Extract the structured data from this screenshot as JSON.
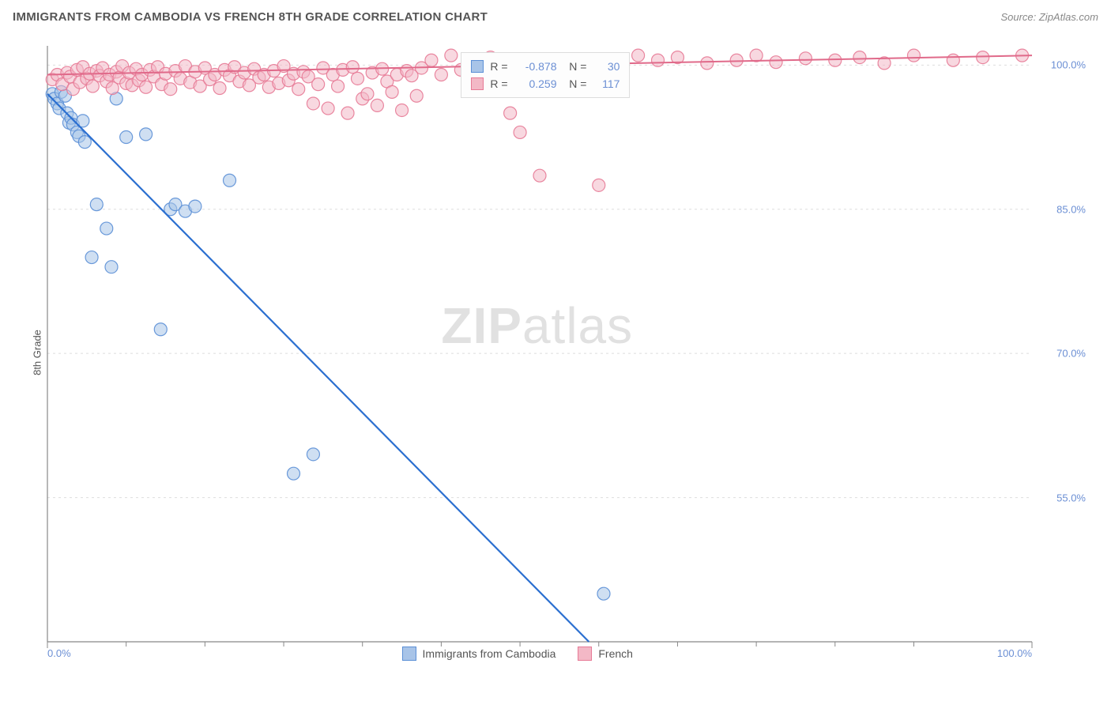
{
  "header": {
    "title": "IMMIGRANTS FROM CAMBODIA VS FRENCH 8TH GRADE CORRELATION CHART",
    "source_prefix": "Source: ",
    "source_link": "ZipAtlas.com"
  },
  "axes": {
    "y_label": "8th Grade",
    "x_min": 0.0,
    "x_max": 100.0,
    "y_min": 40.0,
    "y_max": 102.0,
    "x_ticks": [
      0.0,
      100.0
    ],
    "x_tick_labels": [
      "0.0%",
      "100.0%"
    ],
    "x_minor_ticks": [
      8,
      16,
      24,
      32,
      40,
      48,
      56,
      64,
      72,
      80,
      88
    ],
    "y_ticks": [
      55.0,
      70.0,
      85.0,
      100.0
    ],
    "y_tick_labels": [
      "55.0%",
      "70.0%",
      "85.0%",
      "100.0%"
    ],
    "grid_color": "#dddddd",
    "axis_line_color": "#888888",
    "border_color": "#bbbbbb"
  },
  "plot": {
    "background": "#ffffff",
    "marker_radius": 8,
    "marker_opacity": 0.55,
    "series": [
      {
        "name": "Immigrants from Cambodia",
        "color_fill": "#a8c4e8",
        "color_stroke": "#5b8fd6",
        "line_color": "#2b6fd0",
        "line_width": 2.2,
        "R": -0.878,
        "N": 30,
        "trend": {
          "x1": 0.0,
          "y1": 97.0,
          "x2": 55.0,
          "y2": 40.0
        },
        "points": [
          [
            0.5,
            97.0
          ],
          [
            0.7,
            96.5
          ],
          [
            1.0,
            96.0
          ],
          [
            1.2,
            95.5
          ],
          [
            1.4,
            97.2
          ],
          [
            1.8,
            96.8
          ],
          [
            2.0,
            95.0
          ],
          [
            2.2,
            94.0
          ],
          [
            2.4,
            94.5
          ],
          [
            2.6,
            93.8
          ],
          [
            3.0,
            93.0
          ],
          [
            3.2,
            92.6
          ],
          [
            3.6,
            94.2
          ],
          [
            3.8,
            92.0
          ],
          [
            4.5,
            80.0
          ],
          [
            5.0,
            85.5
          ],
          [
            6.0,
            83.0
          ],
          [
            6.5,
            79.0
          ],
          [
            7.0,
            96.5
          ],
          [
            8.0,
            92.5
          ],
          [
            10.0,
            92.8
          ],
          [
            11.5,
            72.5
          ],
          [
            12.5,
            85.0
          ],
          [
            13.0,
            85.5
          ],
          [
            14.0,
            84.8
          ],
          [
            15.0,
            85.3
          ],
          [
            18.5,
            88.0
          ],
          [
            27.0,
            59.5
          ],
          [
            25.0,
            57.5
          ],
          [
            56.5,
            45.0
          ]
        ]
      },
      {
        "name": "French",
        "color_fill": "#f3b8c6",
        "color_stroke": "#e77a96",
        "line_color": "#e06a8a",
        "line_width": 2.0,
        "R": 0.259,
        "N": 117,
        "trend": {
          "x1": 0.0,
          "y1": 99.0,
          "x2": 100.0,
          "y2": 101.0
        },
        "points": [
          [
            0.5,
            98.5
          ],
          [
            1.0,
            99.0
          ],
          [
            1.5,
            98.0
          ],
          [
            2.0,
            99.2
          ],
          [
            2.3,
            98.8
          ],
          [
            2.6,
            97.5
          ],
          [
            3.0,
            99.5
          ],
          [
            3.3,
            98.2
          ],
          [
            3.6,
            99.8
          ],
          [
            4.0,
            98.6
          ],
          [
            4.3,
            99.1
          ],
          [
            4.6,
            97.8
          ],
          [
            5.0,
            99.4
          ],
          [
            5.3,
            98.9
          ],
          [
            5.6,
            99.7
          ],
          [
            6.0,
            98.3
          ],
          [
            6.3,
            99.0
          ],
          [
            6.6,
            97.6
          ],
          [
            7.0,
            99.3
          ],
          [
            7.3,
            98.7
          ],
          [
            7.6,
            99.9
          ],
          [
            8.0,
            98.1
          ],
          [
            8.3,
            99.2
          ],
          [
            8.6,
            97.9
          ],
          [
            9.0,
            99.6
          ],
          [
            9.3,
            98.4
          ],
          [
            9.6,
            99.0
          ],
          [
            10.0,
            97.7
          ],
          [
            10.4,
            99.5
          ],
          [
            10.8,
            98.8
          ],
          [
            11.2,
            99.8
          ],
          [
            11.6,
            98.0
          ],
          [
            12.0,
            99.1
          ],
          [
            12.5,
            97.5
          ],
          [
            13.0,
            99.4
          ],
          [
            13.5,
            98.6
          ],
          [
            14.0,
            99.9
          ],
          [
            14.5,
            98.2
          ],
          [
            15.0,
            99.3
          ],
          [
            15.5,
            97.8
          ],
          [
            16.0,
            99.7
          ],
          [
            16.5,
            98.5
          ],
          [
            17.0,
            99.0
          ],
          [
            17.5,
            97.6
          ],
          [
            18.0,
            99.5
          ],
          [
            18.5,
            98.9
          ],
          [
            19.0,
            99.8
          ],
          [
            19.5,
            98.3
          ],
          [
            20.0,
            99.2
          ],
          [
            20.5,
            97.9
          ],
          [
            21.0,
            99.6
          ],
          [
            21.5,
            98.7
          ],
          [
            22.0,
            99.0
          ],
          [
            22.5,
            97.7
          ],
          [
            23.0,
            99.4
          ],
          [
            23.5,
            98.1
          ],
          [
            24.0,
            99.9
          ],
          [
            24.5,
            98.4
          ],
          [
            25.0,
            99.1
          ],
          [
            25.5,
            97.5
          ],
          [
            26.0,
            99.3
          ],
          [
            26.5,
            98.8
          ],
          [
            27.0,
            96.0
          ],
          [
            27.5,
            98.0
          ],
          [
            28.0,
            99.7
          ],
          [
            28.5,
            95.5
          ],
          [
            29.0,
            99.0
          ],
          [
            29.5,
            97.8
          ],
          [
            30.0,
            99.5
          ],
          [
            30.5,
            95.0
          ],
          [
            31.0,
            99.8
          ],
          [
            31.5,
            98.6
          ],
          [
            32.0,
            96.5
          ],
          [
            32.5,
            97.0
          ],
          [
            33.0,
            99.2
          ],
          [
            33.5,
            95.8
          ],
          [
            34.0,
            99.6
          ],
          [
            34.5,
            98.3
          ],
          [
            35.0,
            97.2
          ],
          [
            35.5,
            99.0
          ],
          [
            36.0,
            95.3
          ],
          [
            36.5,
            99.4
          ],
          [
            37.0,
            98.9
          ],
          [
            37.5,
            96.8
          ],
          [
            38.0,
            99.7
          ],
          [
            39.0,
            100.5
          ],
          [
            40.0,
            99.0
          ],
          [
            41.0,
            101.0
          ],
          [
            42.0,
            99.5
          ],
          [
            43.0,
            100.0
          ],
          [
            44.0,
            99.8
          ],
          [
            45.0,
            100.8
          ],
          [
            46.0,
            99.2
          ],
          [
            47.0,
            95.0
          ],
          [
            48.0,
            93.0
          ],
          [
            49.0,
            100.5
          ],
          [
            50.0,
            88.5
          ],
          [
            51.0,
            100.0
          ],
          [
            52.0,
            99.5
          ],
          [
            54.0,
            100.5
          ],
          [
            56.0,
            87.5
          ],
          [
            58.0,
            100.0
          ],
          [
            60.0,
            101.0
          ],
          [
            62.0,
            100.5
          ],
          [
            64.0,
            100.8
          ],
          [
            67.0,
            100.2
          ],
          [
            70.0,
            100.5
          ],
          [
            72.0,
            101.0
          ],
          [
            74.0,
            100.3
          ],
          [
            77.0,
            100.7
          ],
          [
            80.0,
            100.5
          ],
          [
            82.5,
            100.8
          ],
          [
            85.0,
            100.2
          ],
          [
            88.0,
            101.0
          ],
          [
            92.0,
            100.5
          ],
          [
            95.0,
            100.8
          ],
          [
            99.0,
            101.0
          ]
        ]
      }
    ]
  },
  "legend_top": {
    "rows": [
      {
        "swatch_fill": "#a8c4e8",
        "swatch_stroke": "#5b8fd6",
        "r_label": "R =",
        "r_value": "-0.878",
        "n_label": "N =",
        "n_value": "30"
      },
      {
        "swatch_fill": "#f3b8c6",
        "swatch_stroke": "#e77a96",
        "r_label": "R =",
        "r_value": " 0.259",
        "n_label": "N =",
        "n_value": "117"
      }
    ]
  },
  "legend_bottom": {
    "items": [
      {
        "swatch_fill": "#a8c4e8",
        "swatch_stroke": "#5b8fd6",
        "label": "Immigrants from Cambodia"
      },
      {
        "swatch_fill": "#f3b8c6",
        "swatch_stroke": "#e77a96",
        "label": "French"
      }
    ]
  },
  "watermark": {
    "part1": "ZIP",
    "part2": "atlas"
  }
}
